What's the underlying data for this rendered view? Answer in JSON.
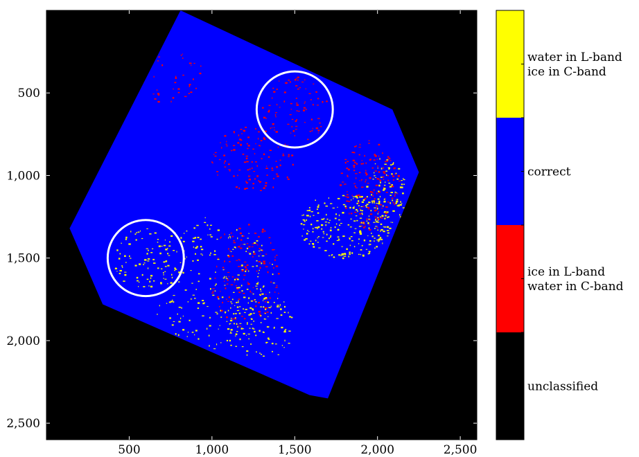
{
  "chart_data": {
    "type": "heatmap",
    "title": "",
    "xlabel": "",
    "ylabel": "",
    "xlim": [
      0,
      2600
    ],
    "ylim": [
      2600,
      0
    ],
    "x_ticks": [
      {
        "value": 500,
        "label": "500"
      },
      {
        "value": 1000,
        "label": "1,000"
      },
      {
        "value": 1500,
        "label": "1,500"
      },
      {
        "value": 2000,
        "label": "2,000"
      },
      {
        "value": 2500,
        "label": "2,500"
      }
    ],
    "y_ticks": [
      {
        "value": 500,
        "label": "500"
      },
      {
        "value": 1000,
        "label": "1,000"
      },
      {
        "value": 1500,
        "label": "1,500"
      },
      {
        "value": 2000,
        "label": "2,000"
      },
      {
        "value": 2500,
        "label": "2,500"
      }
    ],
    "categories": [
      {
        "key": "water_l_ice_c",
        "lines": [
          "water in L-band",
          "ice in C-band"
        ],
        "color": "#ffff00"
      },
      {
        "key": "correct",
        "lines": [
          "correct"
        ],
        "color": "#0000ff"
      },
      {
        "key": "ice_l_water_c",
        "lines": [
          "ice in L-band",
          "water in C-band"
        ],
        "color": "#ff0000"
      },
      {
        "key": "unclassified",
        "lines": [
          "unclassified"
        ],
        "color": "#000000"
      }
    ],
    "footprint_polygon": [
      [
        810,
        0
      ],
      [
        2090,
        600
      ],
      [
        2250,
        980
      ],
      [
        1700,
        2350
      ],
      [
        1590,
        2330
      ],
      [
        340,
        1780
      ],
      [
        140,
        1320
      ]
    ],
    "highlight_circles": [
      {
        "cx": 1500,
        "cy": 600,
        "r": 230
      },
      {
        "cx": 600,
        "cy": 1500,
        "r": 230
      }
    ],
    "mismatch_regions": [
      {
        "category": "ice_l_water_c",
        "cx": 1250,
        "cy": 900,
        "rx": 260,
        "ry": 200,
        "density": 0.35
      },
      {
        "category": "ice_l_water_c",
        "cx": 1950,
        "cy": 1050,
        "rx": 180,
        "ry": 280,
        "density": 0.5
      },
      {
        "category": "ice_l_water_c",
        "cx": 1200,
        "cy": 1600,
        "rx": 220,
        "ry": 320,
        "density": 0.3
      },
      {
        "category": "ice_l_water_c",
        "cx": 700,
        "cy": 400,
        "rx": 260,
        "ry": 160,
        "density": 0.2
      },
      {
        "category": "ice_l_water_c",
        "cx": 1500,
        "cy": 600,
        "rx": 200,
        "ry": 200,
        "density": 0.3
      },
      {
        "category": "water_l_ice_c",
        "cx": 1800,
        "cy": 1300,
        "rx": 280,
        "ry": 200,
        "density": 0.6
      },
      {
        "category": "water_l_ice_c",
        "cx": 2050,
        "cy": 1100,
        "rx": 120,
        "ry": 220,
        "density": 0.5
      },
      {
        "category": "water_l_ice_c",
        "cx": 1000,
        "cy": 1650,
        "rx": 380,
        "ry": 400,
        "density": 0.22
      },
      {
        "category": "water_l_ice_c",
        "cx": 600,
        "cy": 1500,
        "rx": 200,
        "ry": 200,
        "density": 0.3
      },
      {
        "category": "water_l_ice_c",
        "cx": 1300,
        "cy": 1900,
        "rx": 200,
        "ry": 220,
        "density": 0.35
      }
    ],
    "grid": false,
    "colorbar_placement": "right"
  }
}
